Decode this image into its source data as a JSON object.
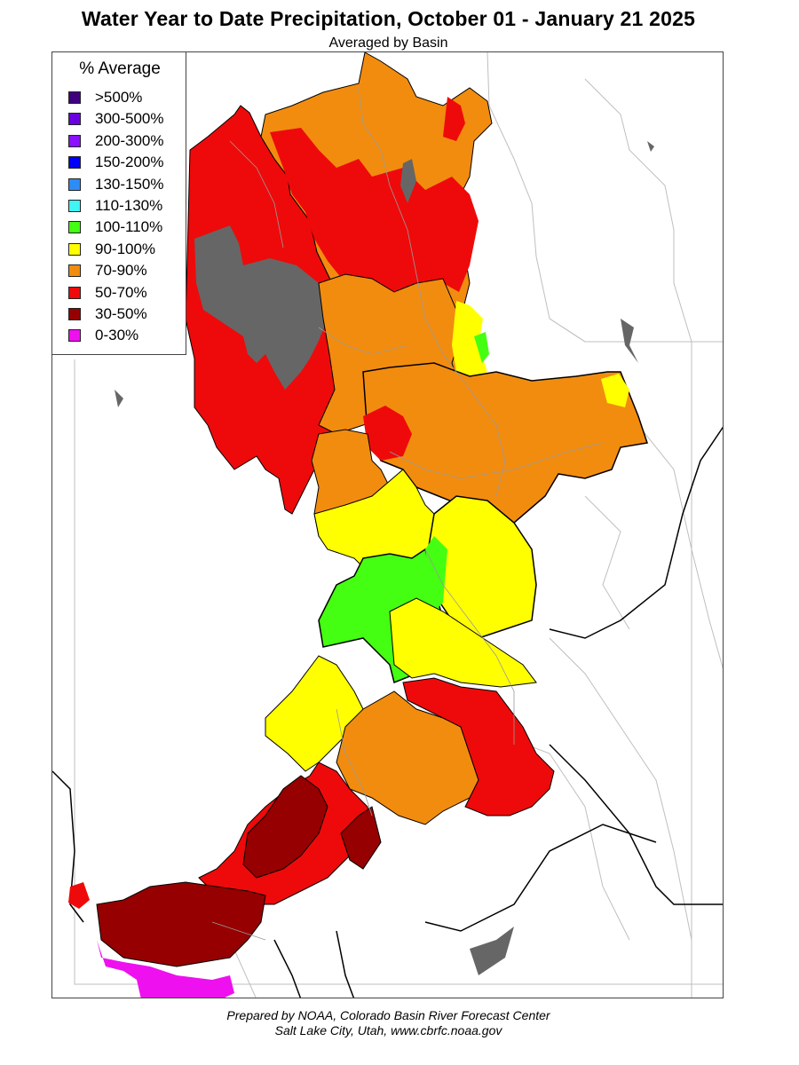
{
  "header": {
    "title": "Water Year to Date Precipitation, October 01  - January 21 2025",
    "subtitle": "Averaged by Basin"
  },
  "legend": {
    "title": "% Average",
    "items": [
      {
        "label": ">500%",
        "color": "#3f0080"
      },
      {
        "label": "300-500%",
        "color": "#6a00e0"
      },
      {
        "label": "200-300%",
        "color": "#8a10ff"
      },
      {
        "label": "150-200%",
        "color": "#0000ff"
      },
      {
        "label": "130-150%",
        "color": "#2e8cf5"
      },
      {
        "label": "110-130%",
        "color": "#40f5f5"
      },
      {
        "label": "100-110%",
        "color": "#44ff11"
      },
      {
        "label": "90-100%",
        "color": "#ffff00"
      },
      {
        "label": "70-90%",
        "color": "#f28c0f"
      },
      {
        "label": "50-70%",
        "color": "#ee0a0a"
      },
      {
        "label": "30-50%",
        "color": "#960000"
      },
      {
        "label": "0-30%",
        "color": "#ee10ee"
      }
    ]
  },
  "map": {
    "no_data_color": "#666666",
    "background_color": "#ffffff"
  },
  "footer": {
    "line1": "Prepared by NOAA, Colorado Basin River Forecast Center",
    "line2": "Salt Lake City, Utah, www.cbrfc.noaa.gov"
  }
}
